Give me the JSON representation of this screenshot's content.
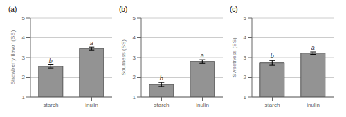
{
  "chart_data": [
    {
      "type": "bar",
      "title": "(a)",
      "ylabel": "Strawberry flavor (SS)",
      "categories": [
        "starch",
        "inulin"
      ],
      "values": [
        2.55,
        3.45
      ],
      "errors": [
        0.08,
        0.07
      ],
      "annotations": [
        "b",
        "a"
      ],
      "ylim": [
        1,
        5
      ],
      "yticks": [
        1,
        2,
        3,
        4,
        5
      ],
      "grid": true,
      "color": "#939393"
    },
    {
      "type": "bar",
      "title": "(b)",
      "ylabel": "Sourness (SS)",
      "categories": [
        "starch",
        "inulin"
      ],
      "values": [
        1.63,
        2.8
      ],
      "errors": [
        0.1,
        0.09
      ],
      "annotations": [
        "b",
        "a"
      ],
      "ylim": [
        1,
        5
      ],
      "yticks": [
        1,
        2,
        3,
        4,
        5
      ],
      "grid": true,
      "color": "#939393"
    },
    {
      "type": "bar",
      "title": "(c)",
      "ylabel": "Sweetness (SS)",
      "categories": [
        "starch",
        "inulin"
      ],
      "values": [
        2.73,
        3.22
      ],
      "errors": [
        0.12,
        0.06
      ],
      "annotations": [
        "b",
        "a"
      ],
      "ylim": [
        1,
        5
      ],
      "yticks": [
        1,
        2,
        3,
        4,
        5
      ],
      "grid": true,
      "color": "#939393"
    }
  ]
}
